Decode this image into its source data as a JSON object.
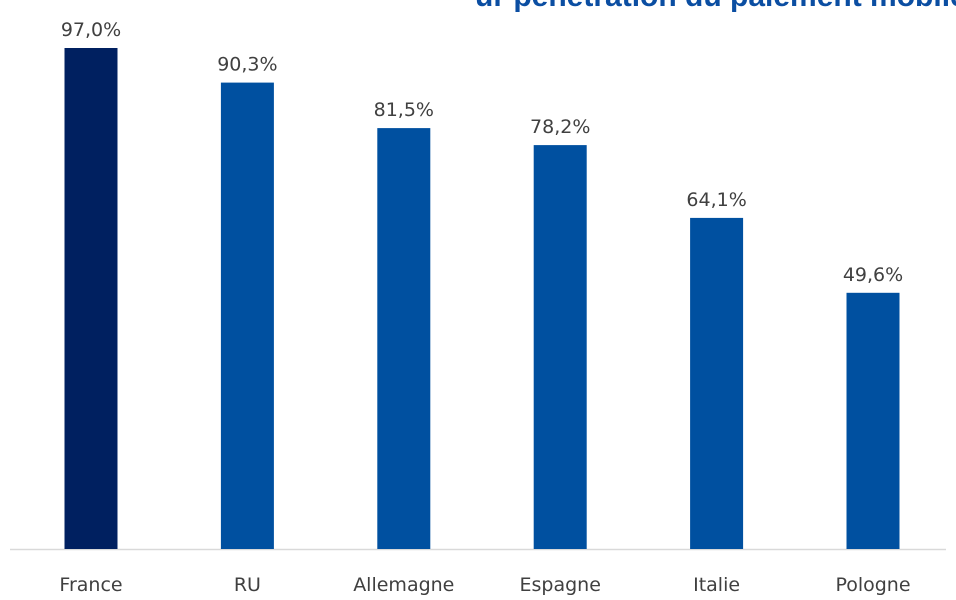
{
  "title_fragment": "ur  pénétration  du  paiement  mobile  dans  le  jeu",
  "chart_data": {
    "type": "bar",
    "categories": [
      "France",
      "RU",
      "Allemagne",
      "Espagne",
      "Italie",
      "Pologne"
    ],
    "values": [
      97.0,
      90.3,
      81.5,
      78.2,
      64.1,
      49.6
    ],
    "value_labels": [
      "97,0%",
      "90,3%",
      "81,5%",
      "78,2%",
      "64,1%",
      "49,6%"
    ],
    "colors": [
      "#002060",
      "#0050a0",
      "#0050a0",
      "#0050a0",
      "#0050a0",
      "#0050a0"
    ],
    "title": "",
    "xlabel": "",
    "ylabel": "",
    "ylim": [
      0,
      100
    ],
    "grid": false,
    "legend": "none"
  },
  "colors": {
    "axis": "#d9d9d9",
    "label_text": "#404040",
    "title_text": "#0b4ea2"
  }
}
